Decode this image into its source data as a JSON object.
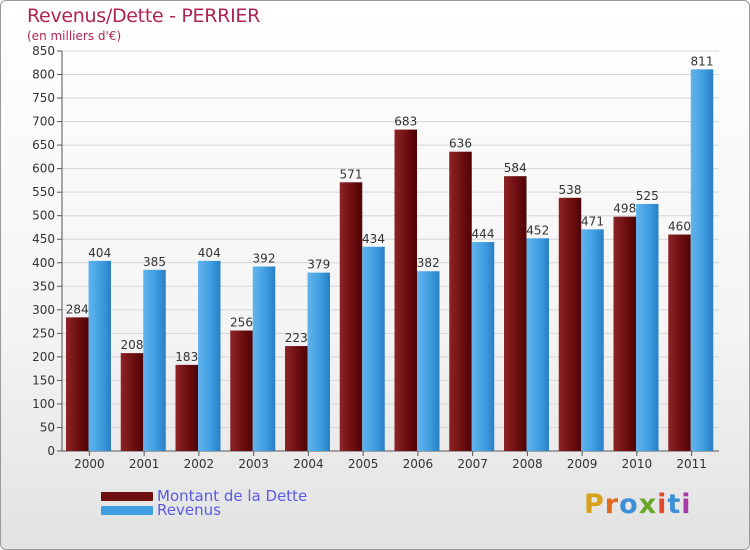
{
  "title": "Revenus/Dette - PERRIER",
  "subtitle": "(en milliers d'€)",
  "colors": {
    "dette": "#6e0e10",
    "revenus": "#2f8fd8",
    "title": "#b02455",
    "legend_text": "#5a5ae6"
  },
  "legend": [
    {
      "label": "Montant de la Dette",
      "color": "#6e0e10"
    },
    {
      "label": "Revenus",
      "color": "#2f8fd8"
    }
  ],
  "logo": {
    "text": "Proxiti"
  },
  "chart_data": {
    "type": "bar",
    "title": "Revenus/Dette - PERRIER",
    "ylabel": "(en milliers d'€)",
    "xlabel": "",
    "ylim": [
      0,
      850
    ],
    "ytick_step": 50,
    "grid": true,
    "legend_position": "bottom-left",
    "categories": [
      "2000",
      "2001",
      "2002",
      "2003",
      "2004",
      "2005",
      "2006",
      "2007",
      "2008",
      "2009",
      "2010",
      "2011"
    ],
    "series": [
      {
        "name": "Montant de la Dette",
        "values": [
          284,
          208,
          183,
          256,
          223,
          571,
          683,
          636,
          584,
          538,
          498,
          460
        ]
      },
      {
        "name": "Revenus",
        "values": [
          404,
          385,
          404,
          392,
          379,
          434,
          382,
          444,
          452,
          471,
          525,
          811
        ]
      }
    ]
  }
}
